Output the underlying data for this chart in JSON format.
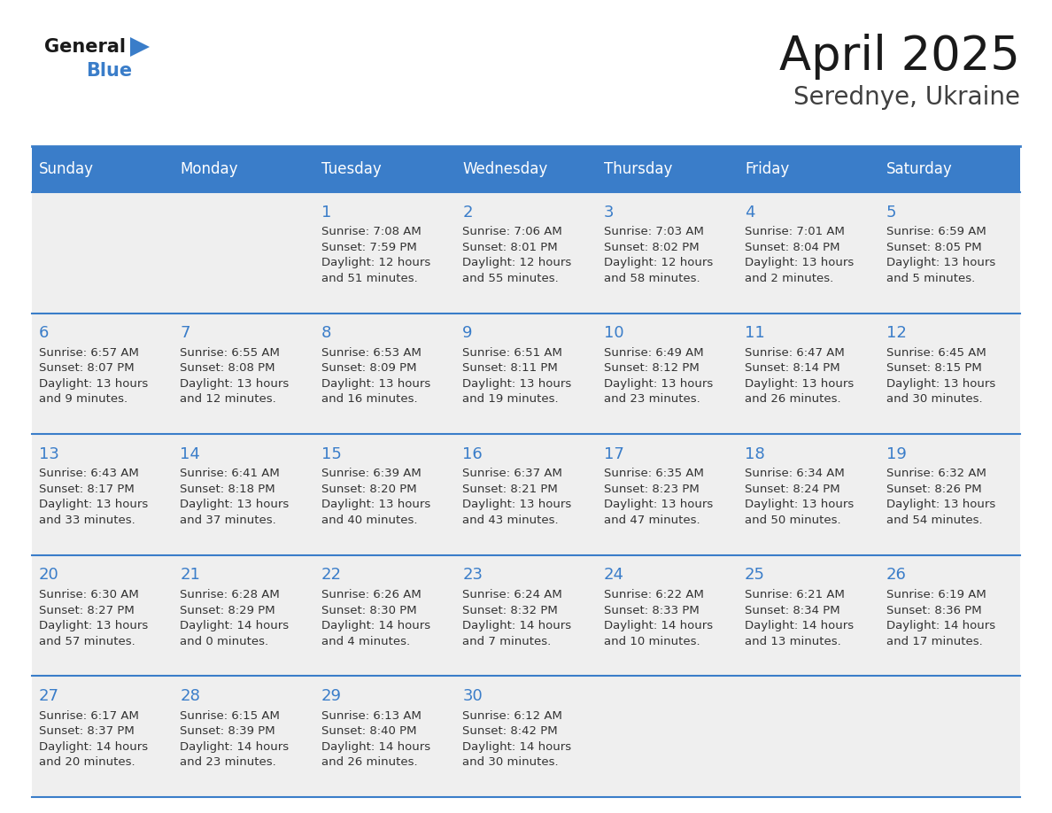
{
  "title": "April 2025",
  "subtitle": "Serednye, Ukraine",
  "header_bg": "#3A7DC9",
  "header_text_color": "#FFFFFF",
  "cell_bg": "#EFEFEF",
  "day_number_color": "#3A7DC9",
  "text_color": "#333333",
  "border_color": "#3A7DC9",
  "days_of_week": [
    "Sunday",
    "Monday",
    "Tuesday",
    "Wednesday",
    "Thursday",
    "Friday",
    "Saturday"
  ],
  "weeks": [
    [
      {
        "day": "",
        "info": ""
      },
      {
        "day": "",
        "info": ""
      },
      {
        "day": "1",
        "info": "Sunrise: 7:08 AM\nSunset: 7:59 PM\nDaylight: 12 hours\nand 51 minutes."
      },
      {
        "day": "2",
        "info": "Sunrise: 7:06 AM\nSunset: 8:01 PM\nDaylight: 12 hours\nand 55 minutes."
      },
      {
        "day": "3",
        "info": "Sunrise: 7:03 AM\nSunset: 8:02 PM\nDaylight: 12 hours\nand 58 minutes."
      },
      {
        "day": "4",
        "info": "Sunrise: 7:01 AM\nSunset: 8:04 PM\nDaylight: 13 hours\nand 2 minutes."
      },
      {
        "day": "5",
        "info": "Sunrise: 6:59 AM\nSunset: 8:05 PM\nDaylight: 13 hours\nand 5 minutes."
      }
    ],
    [
      {
        "day": "6",
        "info": "Sunrise: 6:57 AM\nSunset: 8:07 PM\nDaylight: 13 hours\nand 9 minutes."
      },
      {
        "day": "7",
        "info": "Sunrise: 6:55 AM\nSunset: 8:08 PM\nDaylight: 13 hours\nand 12 minutes."
      },
      {
        "day": "8",
        "info": "Sunrise: 6:53 AM\nSunset: 8:09 PM\nDaylight: 13 hours\nand 16 minutes."
      },
      {
        "day": "9",
        "info": "Sunrise: 6:51 AM\nSunset: 8:11 PM\nDaylight: 13 hours\nand 19 minutes."
      },
      {
        "day": "10",
        "info": "Sunrise: 6:49 AM\nSunset: 8:12 PM\nDaylight: 13 hours\nand 23 minutes."
      },
      {
        "day": "11",
        "info": "Sunrise: 6:47 AM\nSunset: 8:14 PM\nDaylight: 13 hours\nand 26 minutes."
      },
      {
        "day": "12",
        "info": "Sunrise: 6:45 AM\nSunset: 8:15 PM\nDaylight: 13 hours\nand 30 minutes."
      }
    ],
    [
      {
        "day": "13",
        "info": "Sunrise: 6:43 AM\nSunset: 8:17 PM\nDaylight: 13 hours\nand 33 minutes."
      },
      {
        "day": "14",
        "info": "Sunrise: 6:41 AM\nSunset: 8:18 PM\nDaylight: 13 hours\nand 37 minutes."
      },
      {
        "day": "15",
        "info": "Sunrise: 6:39 AM\nSunset: 8:20 PM\nDaylight: 13 hours\nand 40 minutes."
      },
      {
        "day": "16",
        "info": "Sunrise: 6:37 AM\nSunset: 8:21 PM\nDaylight: 13 hours\nand 43 minutes."
      },
      {
        "day": "17",
        "info": "Sunrise: 6:35 AM\nSunset: 8:23 PM\nDaylight: 13 hours\nand 47 minutes."
      },
      {
        "day": "18",
        "info": "Sunrise: 6:34 AM\nSunset: 8:24 PM\nDaylight: 13 hours\nand 50 minutes."
      },
      {
        "day": "19",
        "info": "Sunrise: 6:32 AM\nSunset: 8:26 PM\nDaylight: 13 hours\nand 54 minutes."
      }
    ],
    [
      {
        "day": "20",
        "info": "Sunrise: 6:30 AM\nSunset: 8:27 PM\nDaylight: 13 hours\nand 57 minutes."
      },
      {
        "day": "21",
        "info": "Sunrise: 6:28 AM\nSunset: 8:29 PM\nDaylight: 14 hours\nand 0 minutes."
      },
      {
        "day": "22",
        "info": "Sunrise: 6:26 AM\nSunset: 8:30 PM\nDaylight: 14 hours\nand 4 minutes."
      },
      {
        "day": "23",
        "info": "Sunrise: 6:24 AM\nSunset: 8:32 PM\nDaylight: 14 hours\nand 7 minutes."
      },
      {
        "day": "24",
        "info": "Sunrise: 6:22 AM\nSunset: 8:33 PM\nDaylight: 14 hours\nand 10 minutes."
      },
      {
        "day": "25",
        "info": "Sunrise: 6:21 AM\nSunset: 8:34 PM\nDaylight: 14 hours\nand 13 minutes."
      },
      {
        "day": "26",
        "info": "Sunrise: 6:19 AM\nSunset: 8:36 PM\nDaylight: 14 hours\nand 17 minutes."
      }
    ],
    [
      {
        "day": "27",
        "info": "Sunrise: 6:17 AM\nSunset: 8:37 PM\nDaylight: 14 hours\nand 20 minutes."
      },
      {
        "day": "28",
        "info": "Sunrise: 6:15 AM\nSunset: 8:39 PM\nDaylight: 14 hours\nand 23 minutes."
      },
      {
        "day": "29",
        "info": "Sunrise: 6:13 AM\nSunset: 8:40 PM\nDaylight: 14 hours\nand 26 minutes."
      },
      {
        "day": "30",
        "info": "Sunrise: 6:12 AM\nSunset: 8:42 PM\nDaylight: 14 hours\nand 30 minutes."
      },
      {
        "day": "",
        "info": ""
      },
      {
        "day": "",
        "info": ""
      },
      {
        "day": "",
        "info": ""
      }
    ]
  ],
  "logo_general_color": "#1A1A1A",
  "logo_blue_color": "#3A7DC9",
  "title_fontsize": 38,
  "subtitle_fontsize": 20,
  "header_fontsize": 12,
  "day_num_fontsize": 13,
  "cell_fontsize": 9.5
}
